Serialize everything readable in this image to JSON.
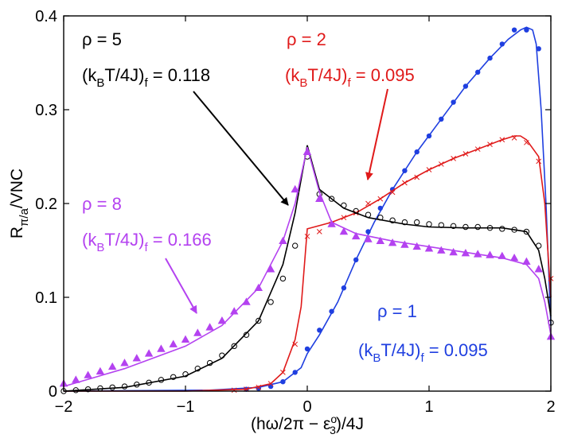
{
  "chart_data": {
    "type": "line",
    "title": "",
    "xlabel": "(hω/2π − ε3o)/4J",
    "ylabel": "Rπ/a/VNC",
    "xlim": [
      -2,
      2
    ],
    "ylim": [
      0,
      0.4
    ],
    "x_ticks": [
      -2,
      -1,
      0,
      1,
      2
    ],
    "x_tick_labels": [
      "−2",
      "−1",
      "0",
      "1",
      "2"
    ],
    "y_ticks": [
      0,
      0.1,
      0.2,
      0.3,
      0.4
    ],
    "y_tick_labels": [
      "0",
      "0.1",
      "0.2",
      "0.3",
      "0.4"
    ],
    "grid": false,
    "axis_label_parts": {
      "x_prefix": "(hω/2π − ε",
      "x_sup": "o",
      "x_sub": "3",
      "x_suffix": ")/4J",
      "y_main": "R",
      "y_sub": "π/a",
      "y_suffix": "/VNC"
    },
    "series": [
      {
        "name": "ρ = 1",
        "color": "#1f3fe0",
        "marker": "dot",
        "line": {
          "x": [
            -2,
            -0.8,
            -0.4,
            -0.2,
            -0.05,
            0,
            0.1,
            0.25,
            0.4,
            0.55,
            0.7,
            0.9,
            1.1,
            1.3,
            1.5,
            1.65,
            1.75,
            1.8,
            1.85,
            1.88,
            1.92,
            1.96,
            2.0
          ],
          "y": [
            0,
            0.001,
            0.004,
            0.01,
            0.025,
            0.04,
            0.06,
            0.095,
            0.14,
            0.18,
            0.215,
            0.255,
            0.29,
            0.325,
            0.355,
            0.375,
            0.385,
            0.388,
            0.385,
            0.37,
            0.3,
            0.2,
            0.07
          ]
        },
        "markers": {
          "x": [
            -0.5,
            -0.4,
            -0.3,
            -0.2,
            -0.1,
            0,
            0.1,
            0.2,
            0.3,
            0.4,
            0.5,
            0.6,
            0.7,
            0.8,
            0.9,
            1.0,
            1.1,
            1.2,
            1.3,
            1.4,
            1.5,
            1.6,
            1.7,
            1.8,
            1.9
          ],
          "y": [
            0.002,
            0.003,
            0.005,
            0.01,
            0.02,
            0.045,
            0.065,
            0.085,
            0.11,
            0.14,
            0.17,
            0.195,
            0.215,
            0.235,
            0.255,
            0.272,
            0.29,
            0.308,
            0.325,
            0.34,
            0.355,
            0.37,
            0.385,
            0.385,
            0.365
          ]
        },
        "annotation_lines": [
          "ρ = 1",
          "(kBT/4J)f = 0.095"
        ]
      },
      {
        "name": "ρ = 2",
        "color": "#e01a1a",
        "marker": "x",
        "line": {
          "x": [
            -2,
            -1,
            -0.5,
            -0.3,
            -0.2,
            -0.1,
            -0.05,
            0,
            0.2,
            0.4,
            0.6,
            0.8,
            1.0,
            1.2,
            1.4,
            1.6,
            1.7,
            1.75,
            1.8,
            1.9,
            1.95,
            2.0
          ],
          "y": [
            0,
            0,
            0.002,
            0.008,
            0.02,
            0.055,
            0.09,
            0.173,
            0.18,
            0.19,
            0.205,
            0.222,
            0.236,
            0.248,
            0.258,
            0.268,
            0.272,
            0.272,
            0.268,
            0.25,
            0.2,
            0.1
          ]
        },
        "markers": {
          "x": [
            -0.6,
            -0.5,
            -0.4,
            -0.3,
            -0.2,
            -0.1,
            0,
            0.1,
            0.2,
            0.3,
            0.4,
            0.5,
            0.6,
            0.7,
            0.8,
            0.9,
            1.0,
            1.1,
            1.2,
            1.3,
            1.4,
            1.5,
            1.6,
            1.7,
            1.8,
            1.9,
            2.0
          ],
          "y": [
            0.001,
            0.002,
            0.004,
            0.008,
            0.02,
            0.05,
            0.165,
            0.17,
            0.178,
            0.185,
            0.19,
            0.2,
            0.205,
            0.212,
            0.222,
            0.228,
            0.236,
            0.242,
            0.248,
            0.253,
            0.258,
            0.263,
            0.268,
            0.27,
            0.265,
            0.245,
            0.12
          ]
        },
        "annotation_lines": [
          "ρ = 2",
          "(kBT/4J)f = 0.095"
        ]
      },
      {
        "name": "ρ = 5",
        "color": "#000000",
        "marker": "circle",
        "line": {
          "x": [
            -2,
            -1.5,
            -1,
            -0.7,
            -0.4,
            -0.2,
            -0.1,
            0,
            0.1,
            0.2,
            0.3,
            0.5,
            0.8,
            1.0,
            1.3,
            1.6,
            1.8,
            1.9,
            1.95,
            2.0
          ],
          "y": [
            0,
            0.004,
            0.016,
            0.035,
            0.075,
            0.135,
            0.19,
            0.262,
            0.215,
            0.205,
            0.195,
            0.185,
            0.178,
            0.175,
            0.174,
            0.174,
            0.17,
            0.15,
            0.12,
            0.08
          ]
        },
        "markers": {
          "x": [
            -2.0,
            -1.9,
            -1.8,
            -1.7,
            -1.6,
            -1.5,
            -1.4,
            -1.3,
            -1.2,
            -1.1,
            -1.0,
            -0.9,
            -0.8,
            -0.7,
            -0.6,
            -0.5,
            -0.4,
            -0.3,
            -0.2,
            -0.1,
            0,
            0.1,
            0.2,
            0.3,
            0.4,
            0.5,
            0.6,
            0.7,
            0.8,
            0.9,
            1.0,
            1.1,
            1.2,
            1.3,
            1.4,
            1.5,
            1.6,
            1.7,
            1.8,
            1.9,
            2.0
          ],
          "y": [
            0,
            0.001,
            0.002,
            0.003,
            0.004,
            0.005,
            0.007,
            0.009,
            0.012,
            0.015,
            0.018,
            0.024,
            0.03,
            0.038,
            0.048,
            0.06,
            0.075,
            0.095,
            0.12,
            0.155,
            0.25,
            0.21,
            0.205,
            0.198,
            0.192,
            0.188,
            0.185,
            0.182,
            0.18,
            0.18,
            0.178,
            0.177,
            0.176,
            0.175,
            0.175,
            0.174,
            0.173,
            0.172,
            0.17,
            0.155,
            0.073
          ]
        },
        "annotation_lines": [
          "ρ = 5",
          "(kBT/4J)f = 0.118"
        ]
      },
      {
        "name": "ρ = 8",
        "color": "#b442f0",
        "marker": "triangle",
        "line": {
          "x": [
            -2,
            -1.5,
            -1,
            -0.7,
            -0.4,
            -0.2,
            -0.1,
            0,
            0.1,
            0.2,
            0.4,
            0.7,
            1.0,
            1.3,
            1.6,
            1.8,
            1.9,
            1.95,
            2.0
          ],
          "y": [
            0.005,
            0.024,
            0.048,
            0.07,
            0.11,
            0.16,
            0.2,
            0.26,
            0.212,
            0.18,
            0.168,
            0.16,
            0.154,
            0.148,
            0.142,
            0.135,
            0.12,
            0.095,
            0.06
          ]
        },
        "markers": {
          "x": [
            -2.0,
            -1.9,
            -1.8,
            -1.7,
            -1.6,
            -1.5,
            -1.4,
            -1.3,
            -1.2,
            -1.1,
            -1.0,
            -0.9,
            -0.8,
            -0.7,
            -0.6,
            -0.5,
            -0.4,
            -0.3,
            -0.2,
            -0.1,
            0,
            0.1,
            0.2,
            0.3,
            0.4,
            0.5,
            0.6,
            0.7,
            0.8,
            0.9,
            1.0,
            1.1,
            1.2,
            1.3,
            1.4,
            1.5,
            1.6,
            1.7,
            1.8,
            1.9,
            2.0
          ],
          "y": [
            0.008,
            0.012,
            0.017,
            0.021,
            0.026,
            0.03,
            0.035,
            0.04,
            0.045,
            0.05,
            0.055,
            0.062,
            0.068,
            0.075,
            0.085,
            0.095,
            0.11,
            0.13,
            0.16,
            0.215,
            0.255,
            0.205,
            0.178,
            0.17,
            0.165,
            0.162,
            0.16,
            0.158,
            0.156,
            0.154,
            0.152,
            0.15,
            0.148,
            0.147,
            0.146,
            0.145,
            0.144,
            0.142,
            0.138,
            0.13,
            0.058
          ]
        },
        "annotation_lines": [
          "ρ = 8",
          "(kBT/4J)f = 0.166"
        ]
      }
    ]
  },
  "annotations": {
    "rho5": {
      "label": "ρ = 5",
      "kt_prefix": "(k",
      "kt_sub": "B",
      "kt_mid": "T/4J)",
      "kt_sub2": "f",
      "kt_value": " = 0.118"
    },
    "rho2": {
      "label": "ρ = 2",
      "kt_prefix": "(k",
      "kt_sub": "B",
      "kt_mid": "T/4J)",
      "kt_sub2": "f",
      "kt_value": " = 0.095"
    },
    "rho8": {
      "label": "ρ = 8",
      "kt_prefix": "(k",
      "kt_sub": "B",
      "kt_mid": "T/4J)",
      "kt_sub2": "f",
      "kt_value": " = 0.166"
    },
    "rho1": {
      "label": "ρ = 1",
      "kt_prefix": "(k",
      "kt_sub": "B",
      "kt_mid": "T/4J)",
      "kt_sub2": "f",
      "kt_value": " = 0.095"
    }
  }
}
